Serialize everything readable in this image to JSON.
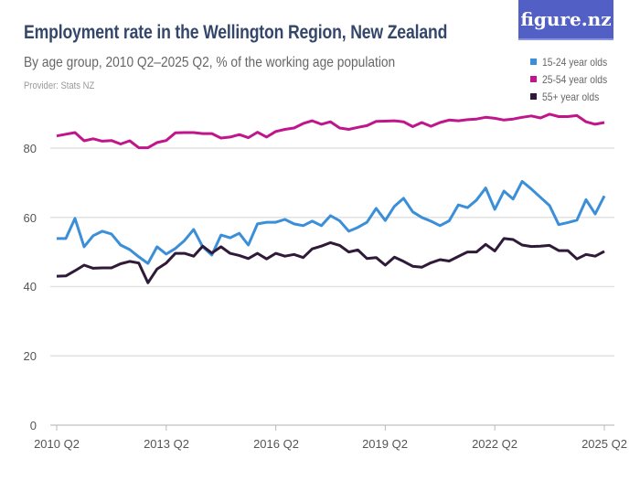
{
  "header": {
    "title": "Employment rate in the Wellington Region, New Zealand",
    "subtitle": "By age group, 2010 Q2–2025 Q2, % of the working age population",
    "provider": "Provider: Stats NZ",
    "logo": "figure.nz"
  },
  "chart_data": {
    "type": "line",
    "title": "Employment rate in the Wellington Region, New Zealand",
    "xlabel": "",
    "ylabel": "",
    "ylim": [
      0,
      92
    ],
    "y_ticks": [
      "0",
      "20",
      "40",
      "60",
      "80"
    ],
    "x_ticks": [
      "2010 Q2",
      "2013 Q2",
      "2016 Q2",
      "2019 Q2",
      "2022 Q2",
      "2025 Q2"
    ],
    "x_range": [
      "2010 Q2",
      "2025 Q2"
    ],
    "x_frequency": "quarterly",
    "grid": "horizontal",
    "legend_position": "top-right",
    "series": [
      {
        "name": "15-24 year olds",
        "color": "#3a8fd8",
        "values": [
          53.9,
          53.9,
          59.7,
          51.5,
          54.7,
          56.0,
          55.2,
          52.0,
          50.7,
          48.6,
          46.7,
          51.5,
          49.4,
          51.0,
          53.3,
          56.5,
          51.5,
          49.1,
          54.9,
          54.1,
          55.4,
          52.0,
          58.1,
          58.6,
          58.6,
          59.4,
          58.1,
          57.6,
          58.9,
          57.6,
          60.5,
          59.0,
          56.0,
          57.1,
          58.6,
          62.6,
          59.1,
          63.2,
          65.5,
          61.6,
          60.0,
          58.9,
          57.6,
          59.0,
          63.6,
          62.8,
          65.0,
          68.5,
          62.3,
          67.6,
          65.3,
          70.4,
          68.2,
          65.8,
          63.4,
          57.9,
          58.5,
          59.2,
          65.1,
          61.0,
          66.2
        ]
      },
      {
        "name": "25-54 year olds",
        "color": "#c0168c",
        "values": [
          83.5,
          84.0,
          84.5,
          82.1,
          82.7,
          82.0,
          82.2,
          81.2,
          82.1,
          80.1,
          80.1,
          81.6,
          82.2,
          84.4,
          84.5,
          84.5,
          84.2,
          84.2,
          82.9,
          83.2,
          83.9,
          83.0,
          84.6,
          83.2,
          84.8,
          85.4,
          85.8,
          87.1,
          87.9,
          86.9,
          87.6,
          85.8,
          85.4,
          86.0,
          86.5,
          87.7,
          87.8,
          87.9,
          87.6,
          86.2,
          87.4,
          86.3,
          87.4,
          88.1,
          87.9,
          88.2,
          88.4,
          88.9,
          88.6,
          88.1,
          88.4,
          88.9,
          89.3,
          88.7,
          89.8,
          89.1,
          89.1,
          89.4,
          87.6,
          86.9,
          87.4
        ]
      },
      {
        "name": "55+ year olds",
        "color": "#2f1a3a",
        "values": [
          43.0,
          43.1,
          44.6,
          46.2,
          45.3,
          45.4,
          45.4,
          46.6,
          47.3,
          46.8,
          41.1,
          45.1,
          46.8,
          49.6,
          49.6,
          48.8,
          51.7,
          49.7,
          51.5,
          49.6,
          49.0,
          48.1,
          49.6,
          48.0,
          49.6,
          48.8,
          49.3,
          48.4,
          50.9,
          51.7,
          52.7,
          51.9,
          50.0,
          50.6,
          48.1,
          48.4,
          46.2,
          48.5,
          47.3,
          45.9,
          45.6,
          46.9,
          47.8,
          47.4,
          48.7,
          50.0,
          50.0,
          52.2,
          50.3,
          53.9,
          53.6,
          52.0,
          51.6,
          51.7,
          51.9,
          50.4,
          50.4,
          48.0,
          49.3,
          48.8,
          50.2
        ]
      }
    ]
  }
}
